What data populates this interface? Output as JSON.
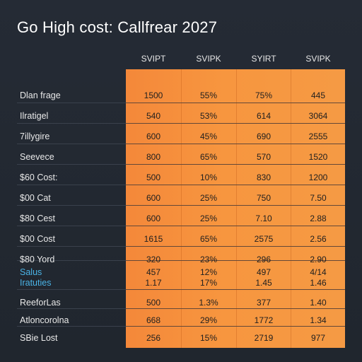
{
  "chart_data": {
    "type": "table",
    "title": "Go High cost: Callfrear 2027",
    "columns": [
      "SVIPT",
      "SVIPK",
      "SYIRT",
      "SVIPK"
    ],
    "rows": [
      {
        "label": "Dlan frage",
        "values": [
          "1500",
          "55%",
          "75%",
          "445"
        ]
      },
      {
        "label": "Ilratigel",
        "values": [
          "540",
          "53%",
          "614",
          "3064"
        ]
      },
      {
        "label": "7illygire",
        "values": [
          "600",
          "45%",
          "690",
          "2555"
        ]
      },
      {
        "label": "Seevece",
        "values": [
          "800",
          "65%",
          "570",
          "1520"
        ]
      },
      {
        "label": "$60 Cost:",
        "values": [
          "500",
          "10%",
          "830",
          "1200"
        ]
      },
      {
        "label": "$00 Cat",
        "values": [
          "600",
          "25%",
          "750",
          "7.50"
        ]
      },
      {
        "label": "$80 Cest",
        "values": [
          "600",
          "25%",
          "7.10",
          "2.88"
        ]
      },
      {
        "label": "$00 Cost",
        "values": [
          "1615",
          "65%",
          "2575",
          "2.56"
        ]
      },
      {
        "label": "$80 Yord",
        "values": [
          "320",
          "23%",
          "296",
          "2.90"
        ]
      },
      {
        "label": "Salus\nIratuties",
        "values": [
          "457\n1.17",
          "12%\n17%",
          "497\n1.45",
          "4/14\n1.46"
        ],
        "accent": true
      },
      {
        "label": "ReeforLas",
        "values": [
          "500",
          "1.3%",
          "377",
          "1.40"
        ]
      },
      {
        "label": "Atloncorolna",
        "values": [
          "668",
          "29%",
          "1772",
          "1.34"
        ]
      },
      {
        "label": "SBie Lost",
        "values": [
          "256",
          "15%",
          "2719",
          "977"
        ]
      }
    ]
  },
  "colors": {
    "background": "#242a33",
    "highlight": "#f4883a",
    "accent_label": "#4ab3e6"
  }
}
